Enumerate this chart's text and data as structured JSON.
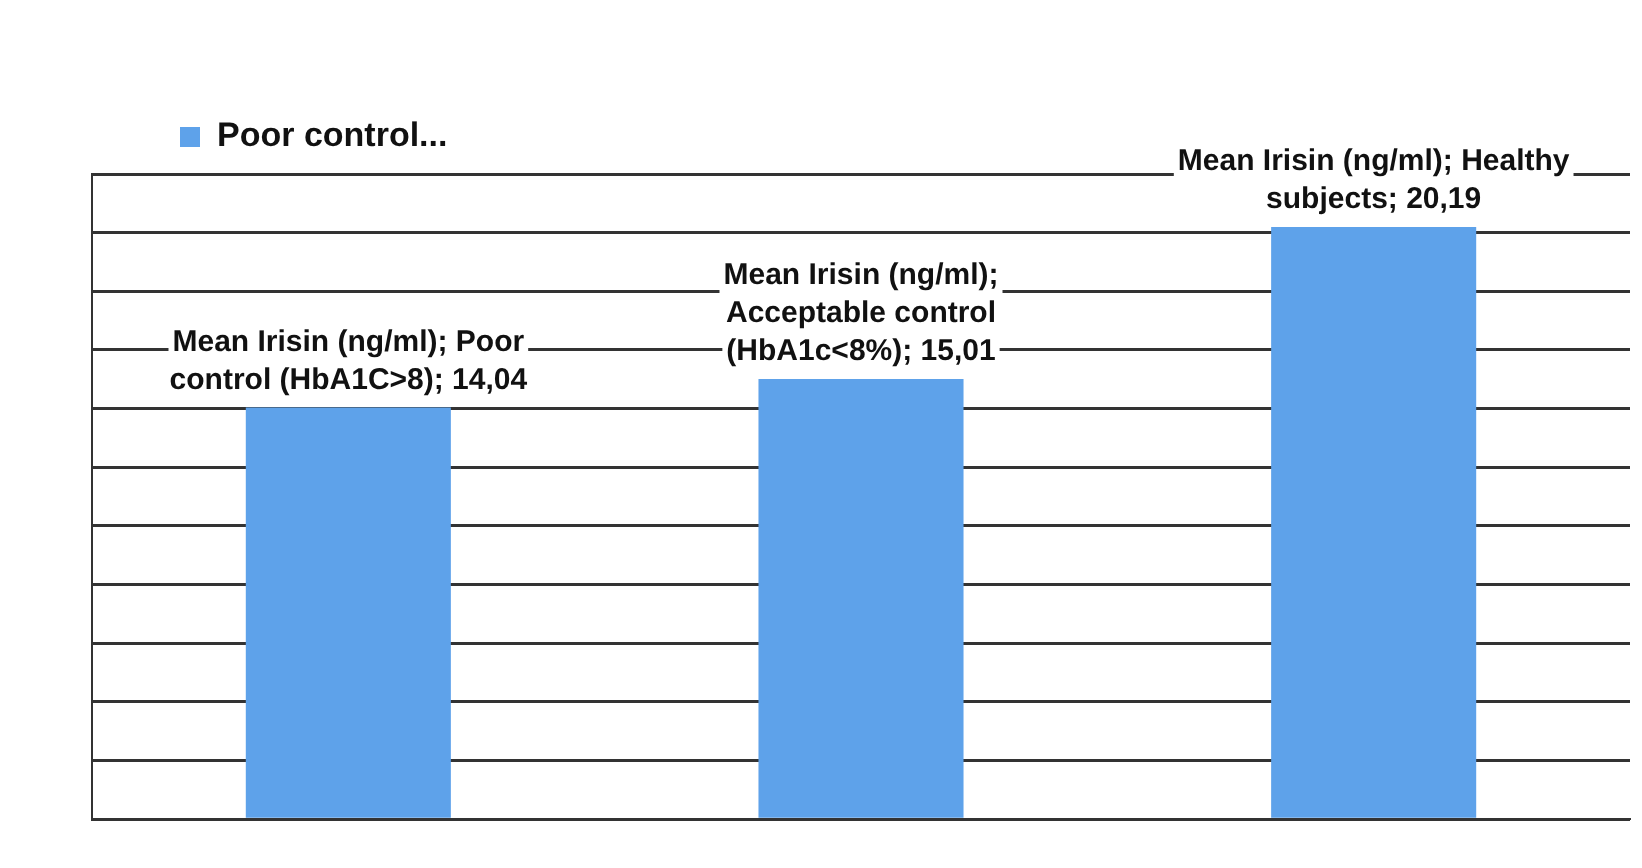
{
  "chart_data": {
    "type": "bar",
    "categories": [
      null,
      null,
      null
    ],
    "series": [
      {
        "name": "Poor control...",
        "color": "#5ea2ea",
        "values": [
          14.04,
          15.01,
          20.19
        ],
        "value_labels": [
          "Mean Irisin (ng/ml); Poor control (HbA1C>8); 14,04",
          "Mean Irisin (ng/ml); Acceptable control (HbA1c<8%); 15,01",
          "Mean Irisin (ng/ml); Healthy subjects; 20,19"
        ]
      }
    ],
    "ylim": [
      0,
      22
    ],
    "yticks": [
      {
        "value": 0,
        "label": null
      },
      {
        "value": 2,
        "label": null
      },
      {
        "value": 4,
        "label": null
      },
      {
        "value": 6,
        "label": null
      },
      {
        "value": 8,
        "label": null
      },
      {
        "value": 10,
        "label": null
      },
      {
        "value": 12,
        "label": null
      },
      {
        "value": 14,
        "label": null
      },
      {
        "value": 16,
        "label": null
      },
      {
        "value": 18,
        "label": null
      },
      {
        "value": 20,
        "label": null
      },
      {
        "value": 22,
        "label": null
      }
    ],
    "grid": "y",
    "legend": "top left"
  }
}
